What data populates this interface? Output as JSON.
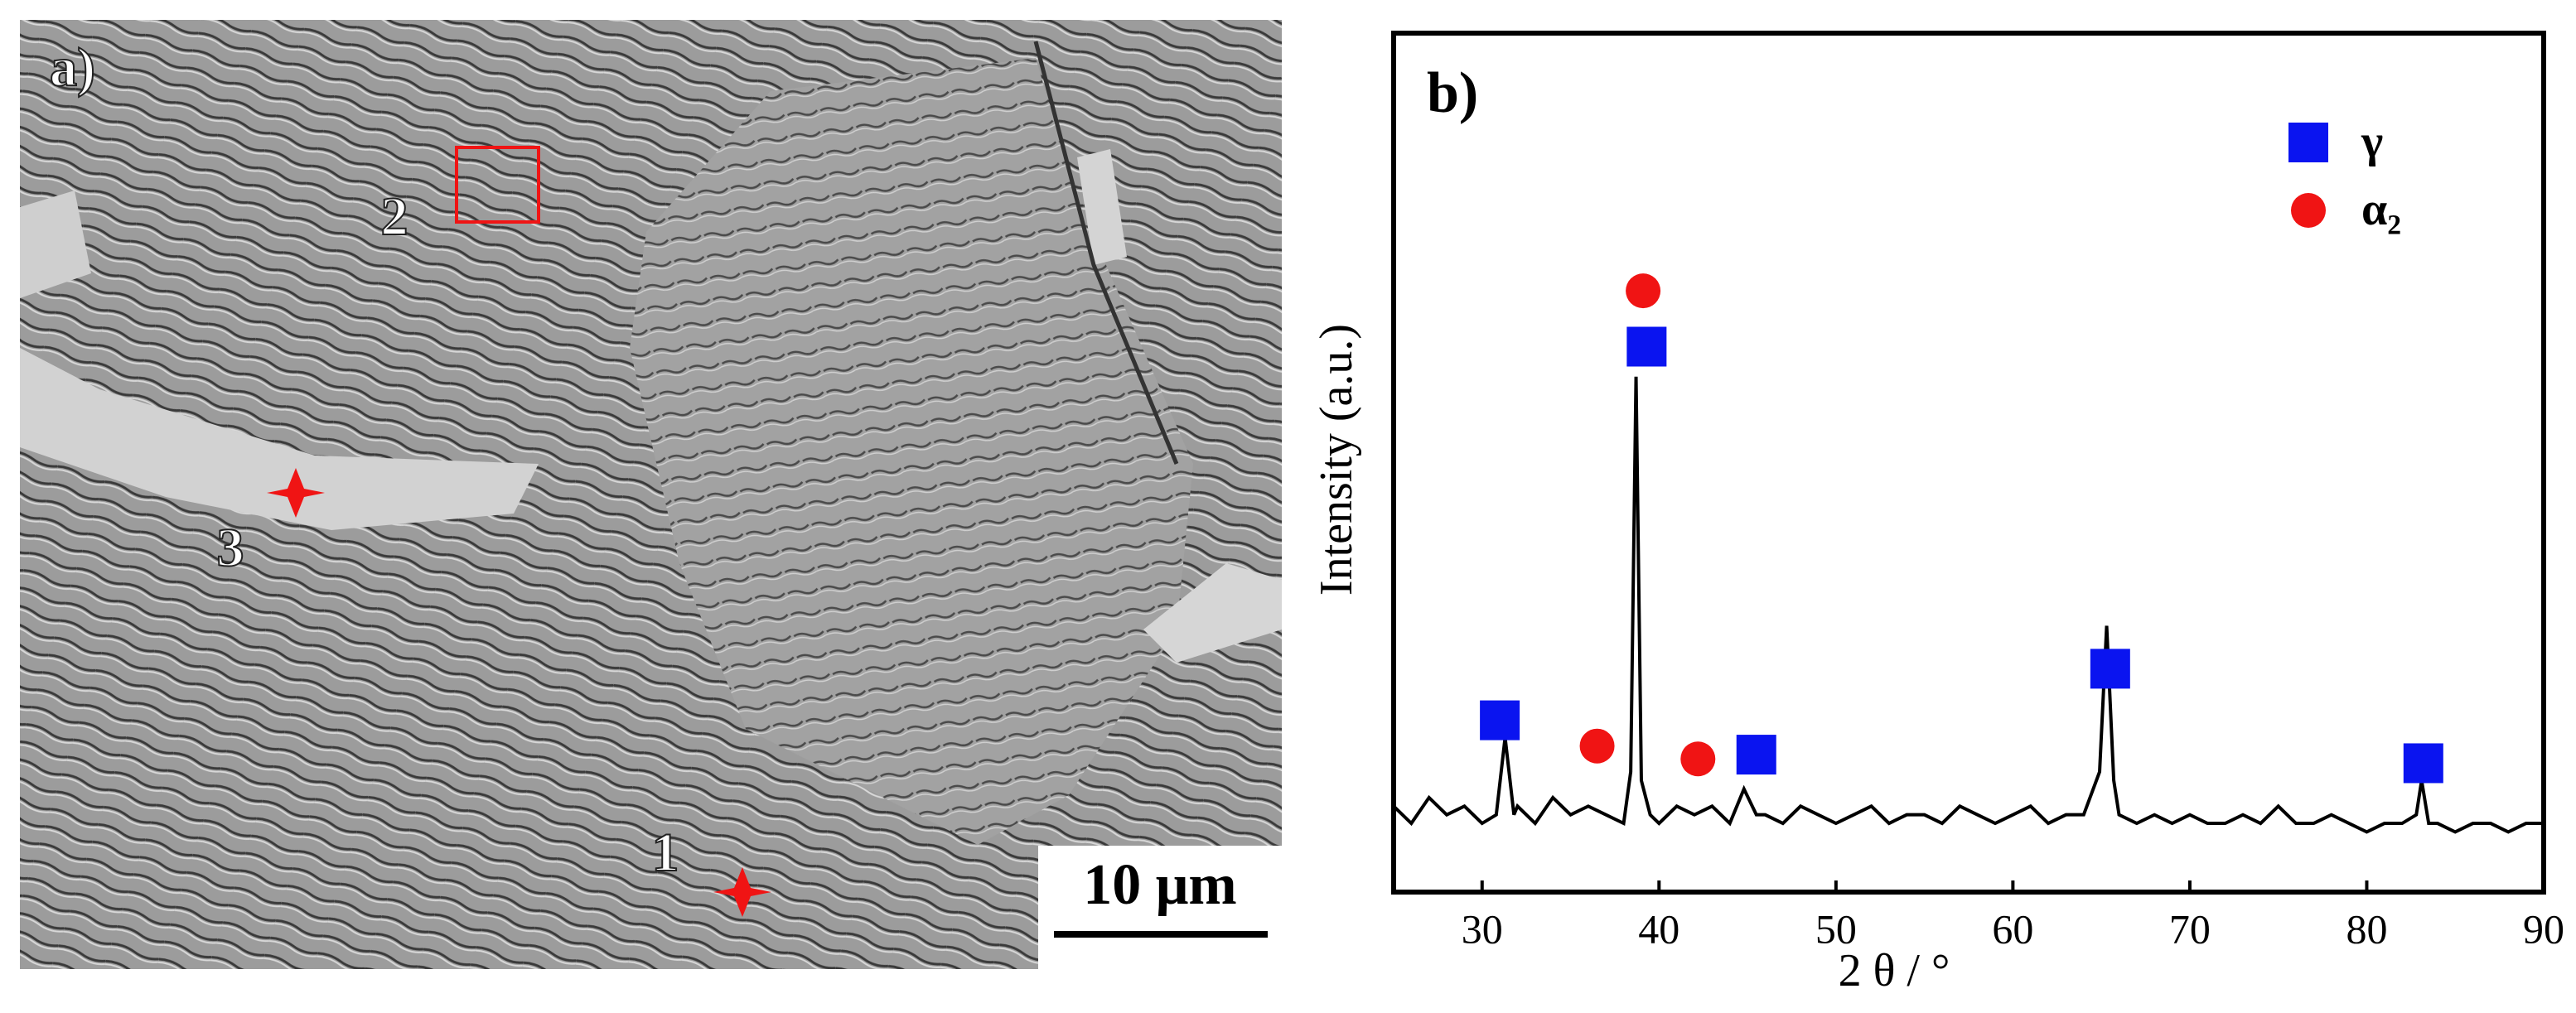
{
  "panel_a": {
    "label": "a)",
    "scale_bar": "10 μm",
    "point_labels": [
      "1",
      "2",
      "3"
    ]
  },
  "chart_data": {
    "type": "line",
    "panel_label": "b)",
    "x_label": "2 θ / °",
    "y_label": "Intensity (a.u.)",
    "color": "#000000",
    "x": [
      25,
      26,
      27,
      28,
      29,
      30,
      30.8,
      31.3,
      31.8,
      32,
      33,
      34,
      35,
      36,
      37,
      38,
      38.4,
      38.7,
      39.0,
      39.5,
      40,
      41,
      42,
      43,
      44,
      44.8,
      45.5,
      46,
      47,
      48,
      49,
      50,
      51,
      52,
      53,
      54,
      55,
      56,
      57,
      58,
      59,
      60,
      61,
      62,
      63,
      64,
      64.9,
      65.3,
      65.7,
      66,
      67,
      68,
      69,
      70,
      71,
      72,
      73,
      74,
      75,
      76,
      77,
      78,
      79,
      80,
      81,
      82,
      82.8,
      83.1,
      83.5,
      84,
      85,
      86,
      87,
      88,
      89,
      90
    ],
    "values": [
      10,
      8,
      11,
      9,
      10,
      8,
      9,
      18,
      9,
      10,
      8,
      11,
      9,
      10,
      9,
      8,
      14,
      60,
      13,
      9,
      8,
      10,
      9,
      10,
      8,
      12,
      9,
      9,
      8,
      10,
      9,
      8,
      9,
      10,
      8,
      9,
      9,
      8,
      10,
      9,
      8,
      9,
      10,
      8,
      9,
      9,
      14,
      31,
      13,
      9,
      8,
      9,
      8,
      9,
      8,
      8,
      9,
      8,
      10,
      8,
      8,
      9,
      8,
      7,
      8,
      8,
      9,
      13,
      8,
      8,
      7,
      8,
      8,
      7,
      8,
      8
    ],
    "markers": [
      {
        "name": "γ",
        "color": "#0a14f0",
        "shape": "square",
        "x": [
          31,
          39.3,
          45.5,
          65.5,
          83.2
        ],
        "values": [
          20,
          63.5,
          16,
          26,
          15
        ]
      },
      {
        "name": "α₂",
        "color": "#f01414",
        "shape": "circle",
        "x": [
          39.1,
          36.5,
          42.2
        ],
        "values": [
          70,
          17,
          15.5
        ]
      }
    ],
    "xlim": [
      25,
      90
    ],
    "ylim": [
      0,
      100
    ],
    "xticks": [
      30,
      40,
      50,
      60,
      70,
      80,
      90
    ]
  }
}
